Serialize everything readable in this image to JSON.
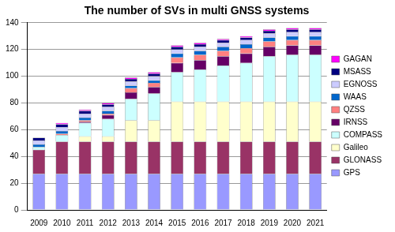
{
  "chart_data": {
    "type": "bar",
    "title": "The number of SVs in multi GNSS systems",
    "categories": [
      "2009",
      "2010",
      "2011",
      "2012",
      "2013",
      "2014",
      "2015",
      "2016",
      "2017",
      "2018",
      "2019",
      "2020",
      "2021"
    ],
    "series": [
      {
        "name": "GPS",
        "color": "#9999ff",
        "values": [
          27,
          27,
          27,
          27,
          27,
          27,
          27,
          27,
          27,
          27,
          27,
          27,
          27
        ]
      },
      {
        "name": "GLONASS",
        "color": "#993366",
        "values": [
          18,
          24,
          24,
          24,
          24,
          24,
          24,
          24,
          24,
          24,
          24,
          24,
          24
        ]
      },
      {
        "name": "Galileo",
        "color": "#ffffcc",
        "values": [
          0,
          0,
          4,
          4,
          16,
          16,
          30,
          30,
          30,
          30,
          30,
          30,
          30
        ]
      },
      {
        "name": "COMPASS",
        "color": "#ccffff",
        "values": [
          2,
          5,
          10,
          13,
          16,
          20,
          22,
          24,
          27,
          29,
          34,
          35,
          35
        ]
      },
      {
        "name": "IRNSS",
        "color": "#660066",
        "values": [
          0,
          0,
          1,
          3,
          5,
          5,
          7,
          7,
          7,
          7,
          7,
          7,
          7
        ]
      },
      {
        "name": "QZSS",
        "color": "#ff8080",
        "values": [
          0,
          1,
          1,
          1,
          3,
          3,
          4,
          4,
          4,
          4,
          4,
          4,
          4
        ]
      },
      {
        "name": "WAAS",
        "color": "#0066cc",
        "values": [
          2,
          2,
          2,
          2,
          2,
          2,
          3,
          3,
          3,
          3,
          3,
          3,
          3
        ]
      },
      {
        "name": "EGNOSS",
        "color": "#ccccff",
        "values": [
          3,
          3,
          3,
          3,
          3,
          3,
          3,
          3,
          3,
          3,
          3,
          3,
          3
        ]
      },
      {
        "name": "MSASS",
        "color": "#000080",
        "values": [
          2,
          2,
          2,
          2,
          2,
          2,
          2,
          2,
          2,
          2,
          2,
          2,
          2
        ]
      },
      {
        "name": "GAGAN",
        "color": "#ff00ff",
        "values": [
          0,
          1,
          1,
          1,
          1,
          1,
          1,
          1,
          1,
          1,
          1,
          1,
          1
        ]
      }
    ],
    "stacked": true,
    "ylim": [
      0,
      140
    ],
    "yticks": [
      0,
      20,
      40,
      60,
      80,
      100,
      120,
      140
    ],
    "grid": true,
    "legend": "right"
  }
}
